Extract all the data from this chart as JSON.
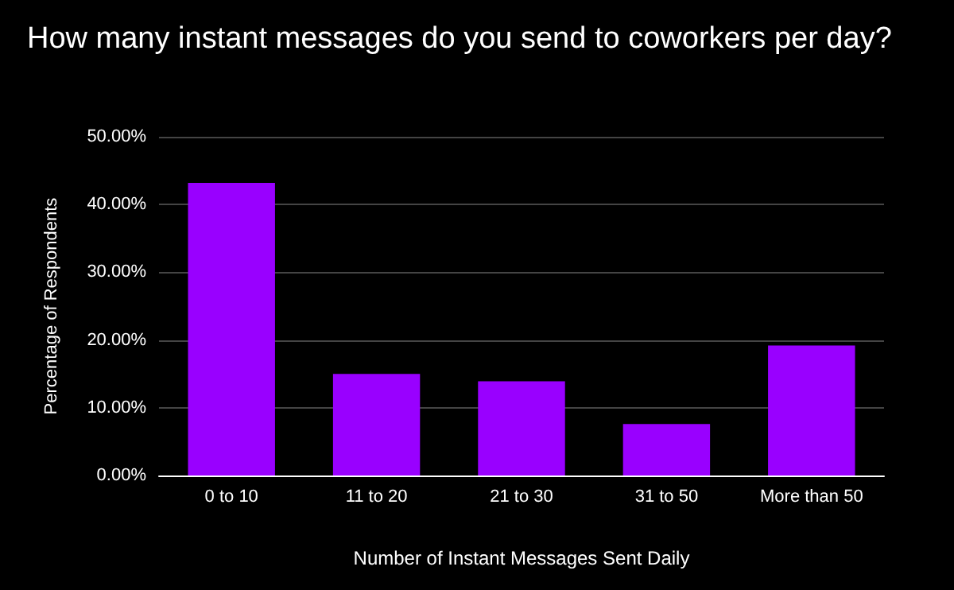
{
  "chart_data": {
    "type": "bar",
    "title": "How many instant messages do you send to coworkers per day?",
    "xlabel": "Number of Instant Messages Sent Daily",
    "ylabel": "Percentage of Respondents",
    "categories": [
      "0 to 10",
      "11 to 20",
      "21 to 30",
      "31 to 50",
      "More than 50"
    ],
    "values": [
      43.2,
      15.0,
      13.9,
      7.6,
      19.2
    ],
    "color": "#9900ff",
    "ylim": [
      0,
      50
    ],
    "yticks": [
      {
        "value": 0,
        "label": "0.00%"
      },
      {
        "value": 10,
        "label": "10.00%"
      },
      {
        "value": 20,
        "label": "20.00%"
      },
      {
        "value": 30,
        "label": "30.00%"
      },
      {
        "value": 40,
        "label": "40.00%"
      },
      {
        "value": 50,
        "label": "50.00%"
      }
    ],
    "grid": "y"
  }
}
